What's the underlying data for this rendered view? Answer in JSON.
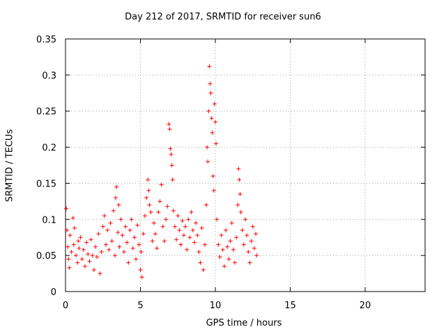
{
  "chart_data": {
    "type": "scatter",
    "title": "Day 212 of 2017, SRMTID for receiver sun6",
    "xlabel": "GPS time / hours",
    "ylabel": "SRMTID / TECUs",
    "xlim": [
      0,
      24
    ],
    "ylim": [
      0,
      0.35
    ],
    "xticks": [
      0,
      5,
      10,
      15,
      20
    ],
    "xtick_labels": [
      "0",
      "5",
      "10",
      "15",
      "20"
    ],
    "yticks": [
      0,
      0.05,
      0.1,
      0.15,
      0.2,
      0.25,
      0.3,
      0.35
    ],
    "ytick_labels": [
      "0",
      "0.05",
      "0.1",
      "0.15",
      "0.2",
      "0.25",
      "0.3",
      "0.35"
    ],
    "grid": true,
    "marker": "+",
    "color": "#ff0000",
    "series": [
      {
        "name": "SRMTID",
        "points": [
          [
            0.05,
            0.115
          ],
          [
            0.1,
            0.085
          ],
          [
            0.15,
            0.062
          ],
          [
            0.2,
            0.045
          ],
          [
            0.25,
            0.033
          ],
          [
            0.3,
            0.078
          ],
          [
            0.4,
            0.055
          ],
          [
            0.5,
            0.102
          ],
          [
            0.55,
            0.065
          ],
          [
            0.6,
            0.088
          ],
          [
            0.7,
            0.05
          ],
          [
            0.8,
            0.04
          ],
          [
            0.85,
            0.07
          ],
          [
            0.9,
            0.06
          ],
          [
            1.0,
            0.075
          ],
          [
            1.1,
            0.045
          ],
          [
            1.2,
            0.058
          ],
          [
            1.3,
            0.035
          ],
          [
            1.4,
            0.068
          ],
          [
            1.5,
            0.052
          ],
          [
            1.6,
            0.042
          ],
          [
            1.7,
            0.072
          ],
          [
            1.8,
            0.05
          ],
          [
            1.9,
            0.03
          ],
          [
            2.0,
            0.062
          ],
          [
            2.1,
            0.048
          ],
          [
            2.2,
            0.08
          ],
          [
            2.3,
            0.025
          ],
          [
            2.4,
            0.055
          ],
          [
            2.5,
            0.09
          ],
          [
            2.6,
            0.105
          ],
          [
            2.7,
            0.065
          ],
          [
            2.8,
            0.085
          ],
          [
            2.9,
            0.058
          ],
          [
            3.0,
            0.095
          ],
          [
            3.1,
            0.07
          ],
          [
            3.2,
            0.112
          ],
          [
            3.3,
            0.05
          ],
          [
            3.35,
            0.13
          ],
          [
            3.4,
            0.145
          ],
          [
            3.5,
            0.082
          ],
          [
            3.55,
            0.12
          ],
          [
            3.6,
            0.062
          ],
          [
            3.7,
            0.1
          ],
          [
            3.8,
            0.078
          ],
          [
            3.9,
            0.055
          ],
          [
            4.0,
            0.09
          ],
          [
            4.1,
            0.068
          ],
          [
            4.2,
            0.04
          ],
          [
            4.3,
            0.085
          ],
          [
            4.4,
            0.1
          ],
          [
            4.5,
            0.06
          ],
          [
            4.6,
            0.075
          ],
          [
            4.7,
            0.045
          ],
          [
            4.8,
            0.092
          ],
          [
            4.9,
            0.065
          ],
          [
            5.0,
            0.03
          ],
          [
            5.05,
            0.055
          ],
          [
            5.1,
            0.02
          ],
          [
            5.2,
            0.08
          ],
          [
            5.3,
            0.105
          ],
          [
            5.4,
            0.13
          ],
          [
            5.5,
            0.155
          ],
          [
            5.55,
            0.14
          ],
          [
            5.6,
            0.12
          ],
          [
            5.7,
            0.11
          ],
          [
            5.8,
            0.07
          ],
          [
            5.9,
            0.095
          ],
          [
            6.0,
            0.08
          ],
          [
            6.1,
            0.06
          ],
          [
            6.2,
            0.11
          ],
          [
            6.3,
            0.125
          ],
          [
            6.4,
            0.148
          ],
          [
            6.5,
            0.09
          ],
          [
            6.6,
            0.07
          ],
          [
            6.7,
            0.1
          ],
          [
            6.8,
            0.118
          ],
          [
            6.9,
            0.232
          ],
          [
            6.95,
            0.225
          ],
          [
            7.0,
            0.198
          ],
          [
            7.05,
            0.19
          ],
          [
            7.1,
            0.175
          ],
          [
            7.15,
            0.155
          ],
          [
            7.2,
            0.112
          ],
          [
            7.3,
            0.09
          ],
          [
            7.4,
            0.072
          ],
          [
            7.5,
            0.105
          ],
          [
            7.6,
            0.085
          ],
          [
            7.7,
            0.065
          ],
          [
            7.8,
            0.098
          ],
          [
            7.9,
            0.078
          ],
          [
            8.0,
            0.09
          ],
          [
            8.1,
            0.058
          ],
          [
            8.2,
            0.1
          ],
          [
            8.3,
            0.075
          ],
          [
            8.4,
            0.11
          ],
          [
            8.5,
            0.085
          ],
          [
            8.6,
            0.068
          ],
          [
            8.7,
            0.095
          ],
          [
            8.8,
            0.078
          ],
          [
            8.9,
            0.055
          ],
          [
            9.0,
            0.04
          ],
          [
            9.1,
            0.088
          ],
          [
            9.2,
            0.03
          ],
          [
            9.3,
            0.065
          ],
          [
            9.4,
            0.12
          ],
          [
            9.45,
            0.2
          ],
          [
            9.5,
            0.18
          ],
          [
            9.55,
            0.25
          ],
          [
            9.6,
            0.312
          ],
          [
            9.65,
            0.288
          ],
          [
            9.7,
            0.275
          ],
          [
            9.75,
            0.24
          ],
          [
            9.8,
            0.22
          ],
          [
            9.85,
            0.16
          ],
          [
            9.9,
            0.14
          ],
          [
            9.95,
            0.26
          ],
          [
            10.0,
            0.235
          ],
          [
            10.05,
            0.205
          ],
          [
            10.1,
            0.1
          ],
          [
            10.2,
            0.065
          ],
          [
            10.3,
            0.048
          ],
          [
            10.4,
            0.078
          ],
          [
            10.5,
            0.058
          ],
          [
            10.6,
            0.035
          ],
          [
            10.7,
            0.085
          ],
          [
            10.8,
            0.062
          ],
          [
            10.9,
            0.045
          ],
          [
            11.0,
            0.07
          ],
          [
            11.1,
            0.095
          ],
          [
            11.2,
            0.058
          ],
          [
            11.3,
            0.04
          ],
          [
            11.4,
            0.075
          ],
          [
            11.5,
            0.12
          ],
          [
            11.55,
            0.17
          ],
          [
            11.6,
            0.155
          ],
          [
            11.65,
            0.135
          ],
          [
            11.7,
            0.11
          ],
          [
            11.8,
            0.085
          ],
          [
            11.9,
            0.065
          ],
          [
            12.0,
            0.1
          ],
          [
            12.1,
            0.078
          ],
          [
            12.2,
            0.055
          ],
          [
            12.3,
            0.04
          ],
          [
            12.4,
            0.07
          ],
          [
            12.5,
            0.09
          ],
          [
            12.6,
            0.06
          ],
          [
            12.7,
            0.08
          ],
          [
            12.75,
            0.05
          ]
        ]
      }
    ]
  }
}
